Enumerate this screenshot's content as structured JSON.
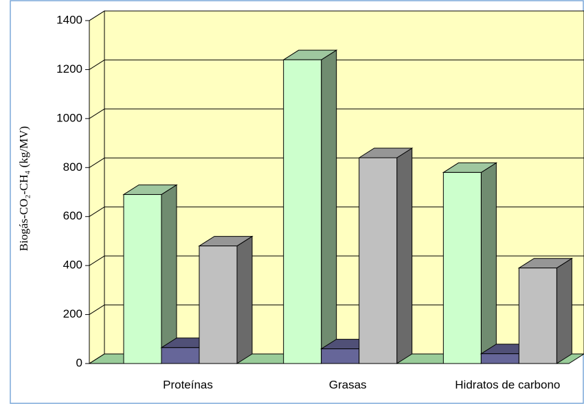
{
  "chart_data": {
    "type": "bar3d",
    "ylabel": "Biogás-CO₂-CH₄ (kg/MV)",
    "categories": [
      "Proteínas",
      "Grasas",
      "Hidratos de carbono"
    ],
    "series": [
      {
        "color": "#ccffcc",
        "values": [
          690,
          1240,
          780
        ]
      },
      {
        "color": "#666699",
        "values": [
          65,
          60,
          40
        ]
      },
      {
        "color": "#c0c0c0",
        "values": [
          480,
          840,
          390
        ]
      }
    ],
    "ylim": [
      0,
      1400
    ],
    "yticks": [
      0,
      200,
      400,
      600,
      800,
      1000,
      1200,
      1400
    ],
    "grid": true
  }
}
